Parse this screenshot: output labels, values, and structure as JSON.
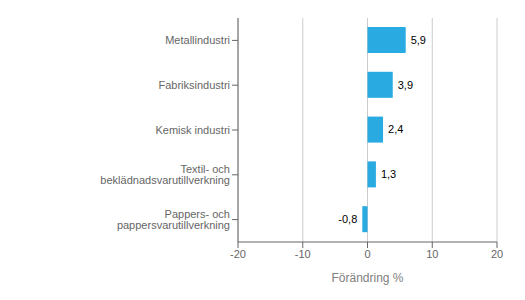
{
  "chart_data": {
    "type": "bar",
    "orientation": "horizontal",
    "categories": [
      "Pappers- och pappersvarutillverkning",
      "Textil- och beklädnadsvarutillverkning",
      "Kemisk industri",
      "Fabriksindustri",
      "Metallindustri"
    ],
    "values": [
      -0.8,
      1.3,
      2.4,
      3.9,
      5.9
    ],
    "value_labels": [
      "-0,8",
      "1,3",
      "2,4",
      "3,9",
      "5,9"
    ],
    "data_labels": true,
    "color": "#29abe2",
    "xlabel": "Förändring %",
    "xlim": [
      -20,
      20
    ],
    "xticks": [
      -20,
      -10,
      0,
      10,
      20
    ],
    "grid": true
  }
}
